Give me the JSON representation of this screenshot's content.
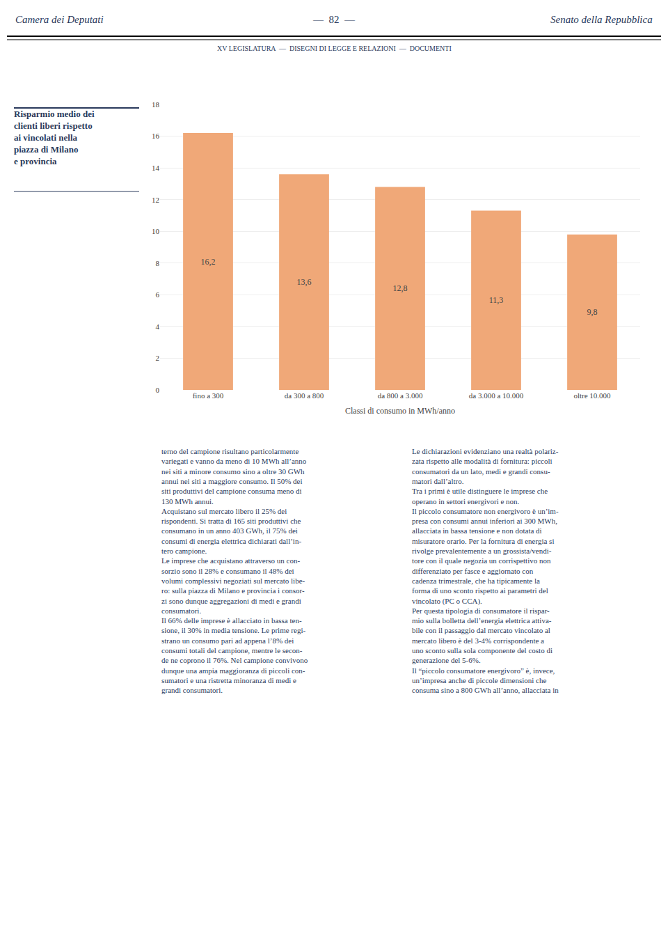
{
  "chart_data": {
    "type": "bar",
    "title": "Risparmio medio dei\nclienti liberi rispetto\nai vincolati nella\npiazza di Milano\ne provincia",
    "annotations": [
      "Camera dei Deputati",
      "—  82  —",
      "Senato della Repubblica",
      "XV LEGISLATURA  —  DISEGNI DI LEGGE E RELAZIONI  —  DOCUMENTI",
      "terno del campione risultano particolarmente\nvariegati e vanno da meno di 10 MWh all’anno\nnei siti a minore consumo sino a oltre 30 GWh\nannui nei siti a maggiore consumo. Il 50% dei\nsiti produttivi del campione consuma meno di\n130 MWh annui.\nAcquistano sul mercato libero il 25% dei\nrispondenti. Si tratta di 165 siti produttivi che\nconsumano in un anno 403 GWh, il 75% dei\nconsumi di energia elettrica dichiarati dall’in-\ntero campione.\nLe imprese che acquistano attraverso un con-\nsorzio sono il 28% e consumano il 48% dei\nvolumi complessivi negoziati sul mercato libe-\nro: sulla piazza di Milano e provincia i consor-\nzi sono dunque aggregazioni di medi e grandi\nconsumatori.\nIl 66% delle imprese è allacciato in bassa ten-\nsione, il 30% in media tensione. Le prime regi-\nstrano un consumo pari ad appena l’8% dei\nconsumi totali del campione, mentre le secon-\nde ne coprono il 76%. Nel campione convivono\ndunque una ampia maggioranza di piccoli con-\nsumatori e una ristretta minoranza di medi e\ngrandi consumatori.",
      "Le dichiarazioni evidenziano una realtà polariz-\nzata rispetto alle modalità di fornitura: piccoli\nconsumatori da un lato, medi e grandi consu-\nmatori dall’altro.\nTra i primi è utile distinguere le imprese che\noperano in settori energivori e non.\nIl piccolo consumatore non energivoro è un’im-\npresa con consumi annui inferiori ai 300 MWh,\nallacciata in bassa tensione e non dotata di\nmisuratore orario. Per la fornitura di energia si\nrivolge prevalentemente a un grossista/vendi-\ntore con il quale negozia un corrispettivo non\ndifferenziato per fasce e aggiornato con\ncadenza trimestrale, che ha tipicamente la\nforma di uno sconto rispetto ai parametri del\nvincolato (PC o CCA).\nPer questa tipologia di consumatore il rispar-\nmio sulla bolletta dell’energia elettrica attiva-\nbile con il passaggio dal mercato vincolato al\nmercato libero è del 3-4% corrispondente a\nuno sconto sulla sola componente del costo di\ngenerazione del 5-6%.\nIl “piccolo consumatore energivoro” è, invece,\nun’impresa anche di piccole dimensioni che\nconsuma sino a 800 GWh all’anno, allacciata in"
    ],
    "categories": [
      "fino a 300",
      "da 300 a 800",
      "da 800 a 3.000",
      "da 3.000 a 10.000",
      "oltre 10.000"
    ],
    "values": [
      16.2,
      13.6,
      12.8,
      11.3,
      9.8
    ],
    "value_labels": [
      "16,2",
      "13,6",
      "12,8",
      "11,3",
      "9,8"
    ],
    "data_labels": true,
    "color": "#f0a878",
    "xlabel": "Classi di consumo in MWh/anno",
    "ylim": [
      0,
      18
    ],
    "yticks": [
      0,
      2,
      4,
      6,
      8,
      10,
      12,
      14,
      16,
      18
    ],
    "grid": true
  }
}
